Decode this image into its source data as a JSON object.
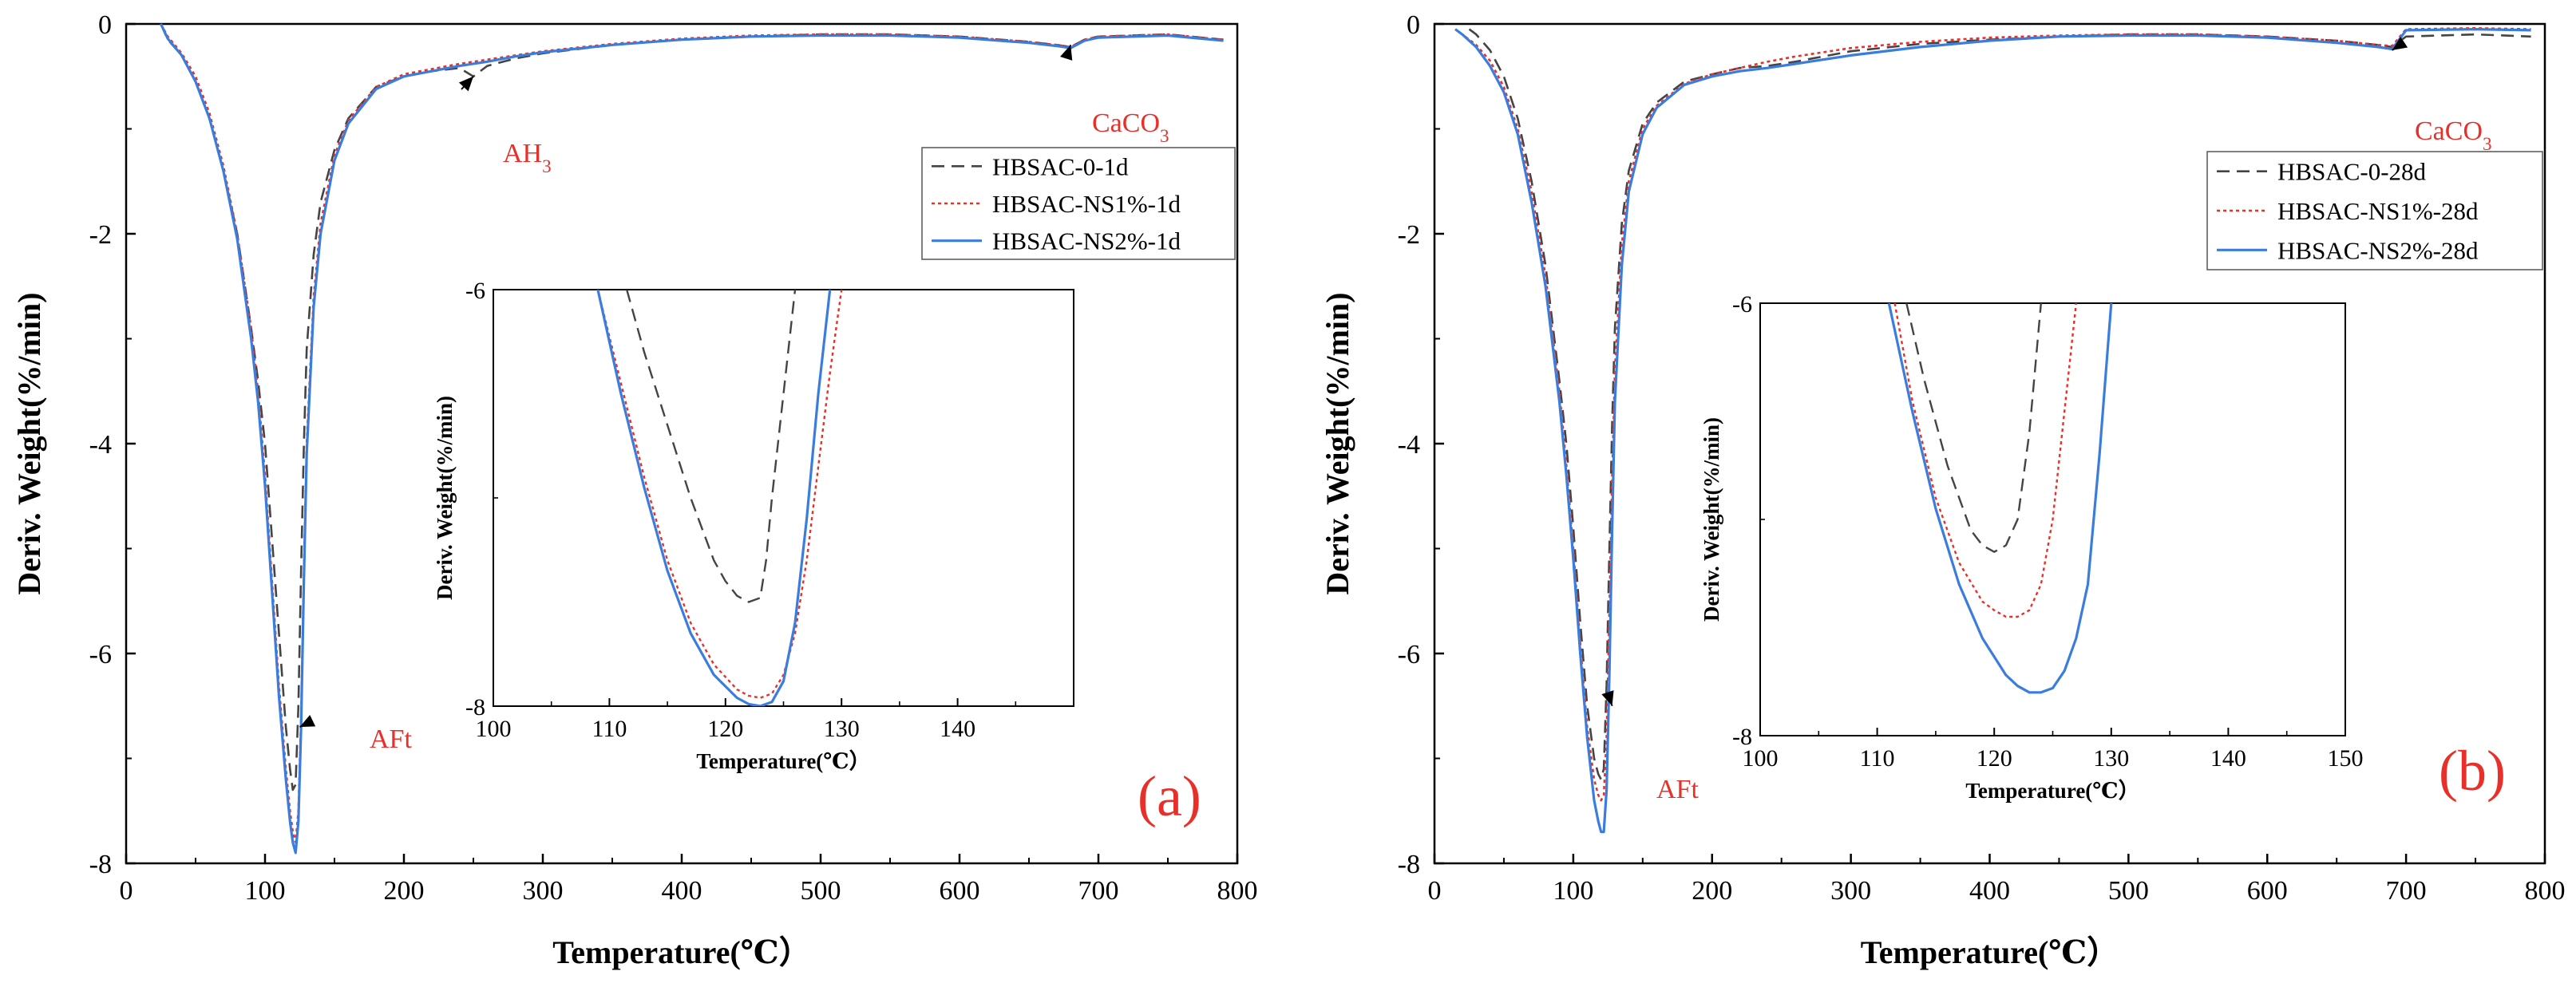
{
  "chart_data": [
    {
      "type": "line",
      "panel_label": "(a)",
      "xlabel": "Temperature(℃）",
      "ylabel": "Deriv. Weight(%/min)",
      "xlim": [
        0,
        800
      ],
      "ylim": [
        -8,
        0
      ],
      "xticks": [
        0,
        100,
        200,
        300,
        400,
        500,
        600,
        700,
        800
      ],
      "yticks": [
        0,
        -2,
        -4,
        -6,
        -8
      ],
      "legend_position": "right-upper",
      "series": [
        {
          "name": "HBSAC-0-1d",
          "color": "#444444",
          "dash": "dashed",
          "x": [
            25,
            30,
            40,
            50,
            60,
            70,
            80,
            90,
            95,
            100,
            105,
            110,
            115,
            118,
            120,
            122,
            124,
            126,
            128,
            130,
            135,
            140,
            150,
            160,
            180,
            200,
            220,
            240,
            250,
            260,
            280,
            300,
            350,
            400,
            450,
            500,
            550,
            600,
            650,
            670,
            680,
            690,
            700,
            750,
            790
          ],
          "y": [
            0,
            -0.15,
            -0.3,
            -0.55,
            -0.9,
            -1.4,
            -2.0,
            -2.9,
            -3.4,
            -4.0,
            -4.9,
            -5.8,
            -6.7,
            -7.1,
            -7.3,
            -7.25,
            -6.5,
            -5.2,
            -4.0,
            -3.1,
            -2.2,
            -1.7,
            -1.2,
            -0.9,
            -0.6,
            -0.5,
            -0.45,
            -0.42,
            -0.5,
            -0.4,
            -0.33,
            -0.28,
            -0.2,
            -0.15,
            -0.12,
            -0.1,
            -0.1,
            -0.12,
            -0.17,
            -0.2,
            -0.22,
            -0.15,
            -0.12,
            -0.1,
            -0.15
          ]
        },
        {
          "name": "HBSAC-NS1%-1d",
          "color": "#e8302a",
          "dash": "dotted",
          "x": [
            25,
            30,
            40,
            50,
            60,
            70,
            80,
            90,
            95,
            100,
            105,
            110,
            115,
            118,
            120,
            122,
            124,
            126,
            128,
            130,
            135,
            140,
            150,
            160,
            180,
            200,
            220,
            240,
            260,
            280,
            300,
            350,
            400,
            450,
            500,
            550,
            600,
            650,
            670,
            680,
            690,
            700,
            750,
            790
          ],
          "y": [
            0,
            -0.12,
            -0.28,
            -0.5,
            -0.85,
            -1.35,
            -2.0,
            -2.9,
            -3.5,
            -4.3,
            -5.3,
            -6.3,
            -7.1,
            -7.5,
            -7.7,
            -7.8,
            -7.5,
            -6.6,
            -5.2,
            -4.0,
            -2.6,
            -1.9,
            -1.25,
            -0.92,
            -0.6,
            -0.48,
            -0.43,
            -0.38,
            -0.34,
            -0.3,
            -0.26,
            -0.19,
            -0.14,
            -0.11,
            -0.1,
            -0.1,
            -0.12,
            -0.17,
            -0.2,
            -0.22,
            -0.15,
            -0.12,
            -0.1,
            -0.15
          ]
        },
        {
          "name": "HBSAC-NS2%-1d",
          "color": "#3b7ddd",
          "dash": "solid",
          "x": [
            25,
            30,
            40,
            50,
            60,
            70,
            80,
            90,
            95,
            100,
            105,
            110,
            115,
            118,
            120,
            122,
            124,
            126,
            128,
            130,
            135,
            140,
            150,
            160,
            180,
            200,
            220,
            240,
            260,
            280,
            300,
            350,
            400,
            450,
            500,
            550,
            600,
            650,
            670,
            680,
            690,
            700,
            750,
            790
          ],
          "y": [
            0,
            -0.14,
            -0.3,
            -0.55,
            -0.9,
            -1.4,
            -2.05,
            -3.0,
            -3.6,
            -4.4,
            -5.4,
            -6.4,
            -7.2,
            -7.6,
            -7.8,
            -7.9,
            -7.6,
            -6.7,
            -5.3,
            -4.1,
            -2.7,
            -2.0,
            -1.3,
            -0.95,
            -0.62,
            -0.5,
            -0.45,
            -0.4,
            -0.36,
            -0.31,
            -0.27,
            -0.2,
            -0.15,
            -0.12,
            -0.11,
            -0.11,
            -0.13,
            -0.18,
            -0.21,
            -0.23,
            -0.16,
            -0.13,
            -0.11,
            -0.16
          ]
        }
      ],
      "annotations": [
        {
          "text": "AH",
          "sub": "3",
          "x": 250,
          "y": -0.5
        },
        {
          "text": "CaCO",
          "sub": "3",
          "x": 680,
          "y": -0.2
        },
        {
          "text": "AFt",
          "sub": "",
          "x": 125,
          "y": -6.7
        }
      ],
      "inset": {
        "xlabel": "Temperature(℃）",
        "ylabel": "Deriv. Weight(%/min)",
        "xlim": [
          100,
          150
        ],
        "ylim": [
          -8,
          -6
        ],
        "xticks": [
          100,
          110,
          120,
          130,
          140
        ],
        "yticks": [
          -6,
          -8
        ],
        "series": [
          {
            "name": "HBSAC-0-1d",
            "x": [
              111.5,
              113,
              115,
              117,
              119,
              120,
              121,
              122,
              123,
              123.5,
              124,
              125,
              126
            ],
            "y": [
              -6.0,
              -6.3,
              -6.65,
              -7.0,
              -7.3,
              -7.4,
              -7.47,
              -7.5,
              -7.48,
              -7.3,
              -7.0,
              -6.5,
              -6.0
            ]
          },
          {
            "name": "HBSAC-NS1%-1d",
            "x": [
              109,
              111,
              113,
              115,
              117,
              119,
              121,
              122,
              123,
              124,
              125,
              126,
              127,
              128,
              129,
              130
            ],
            "y": [
              -6.0,
              -6.45,
              -6.9,
              -7.3,
              -7.6,
              -7.8,
              -7.92,
              -7.95,
              -7.96,
              -7.94,
              -7.85,
              -7.65,
              -7.3,
              -6.85,
              -6.4,
              -6.0
            ]
          },
          {
            "name": "HBSAC-NS2%-1d",
            "x": [
              109,
              111,
              113,
              115,
              117,
              119,
              121,
              122,
              123,
              124,
              125,
              126,
              127,
              128,
              129
            ],
            "y": [
              -6.0,
              -6.5,
              -6.95,
              -7.35,
              -7.65,
              -7.85,
              -7.96,
              -7.99,
              -8.0,
              -7.98,
              -7.88,
              -7.6,
              -7.1,
              -6.5,
              -6.0
            ]
          }
        ]
      }
    },
    {
      "type": "line",
      "panel_label": "(b)",
      "xlabel": "Temperature(℃）",
      "ylabel": "Deriv. Weight(%/min)",
      "xlim": [
        0,
        800
      ],
      "ylim": [
        -8,
        0
      ],
      "xticks": [
        0,
        100,
        200,
        300,
        400,
        500,
        600,
        700,
        800
      ],
      "yticks": [
        0,
        -2,
        -4,
        -6,
        -8
      ],
      "legend_position": "right-upper",
      "series": [
        {
          "name": "HBSAC-0-28d",
          "color": "#444444",
          "dash": "dashed",
          "x": [
            25,
            30,
            40,
            50,
            60,
            70,
            80,
            90,
            95,
            100,
            105,
            110,
            115,
            118,
            120,
            122,
            124,
            126,
            128,
            130,
            135,
            140,
            150,
            160,
            180,
            200,
            220,
            240,
            260,
            280,
            300,
            350,
            400,
            450,
            500,
            550,
            600,
            650,
            680,
            690,
            700,
            750,
            790
          ],
          "y": [
            -0.05,
            -0.1,
            -0.25,
            -0.5,
            -0.9,
            -1.5,
            -2.3,
            -3.4,
            -4.0,
            -4.8,
            -5.7,
            -6.5,
            -7.0,
            -7.15,
            -7.2,
            -7.1,
            -6.3,
            -5.0,
            -3.8,
            -2.9,
            -1.9,
            -1.4,
            -0.95,
            -0.75,
            -0.55,
            -0.48,
            -0.42,
            -0.4,
            -0.36,
            -0.31,
            -0.26,
            -0.19,
            -0.15,
            -0.12,
            -0.1,
            -0.1,
            -0.12,
            -0.16,
            -0.2,
            -0.22,
            -0.12,
            -0.1,
            -0.12
          ]
        },
        {
          "name": "HBSAC-NS1%-28d",
          "color": "#e8302a",
          "dash": "dotted",
          "x": [
            15,
            20,
            30,
            40,
            50,
            60,
            70,
            80,
            90,
            95,
            100,
            105,
            110,
            115,
            118,
            120,
            122,
            124,
            126,
            128,
            130,
            135,
            140,
            150,
            160,
            180,
            200,
            220,
            240,
            260,
            280,
            300,
            350,
            400,
            450,
            500,
            550,
            600,
            650,
            680,
            690,
            700,
            750,
            790
          ],
          "y": [
            -0.05,
            -0.1,
            -0.2,
            -0.35,
            -0.6,
            -1.0,
            -1.6,
            -2.4,
            -3.5,
            -4.2,
            -5.0,
            -5.9,
            -6.7,
            -7.2,
            -7.35,
            -7.4,
            -7.35,
            -6.8,
            -5.6,
            -4.3,
            -3.3,
            -2.1,
            -1.5,
            -1.0,
            -0.78,
            -0.57,
            -0.48,
            -0.42,
            -0.36,
            -0.31,
            -0.27,
            -0.23,
            -0.17,
            -0.13,
            -0.11,
            -0.1,
            -0.1,
            -0.12,
            -0.16,
            -0.2,
            -0.21,
            -0.05,
            -0.04,
            -0.05
          ]
        },
        {
          "name": "HBSAC-NS2%-28d",
          "color": "#3b7ddd",
          "dash": "solid",
          "x": [
            15,
            20,
            30,
            40,
            50,
            60,
            70,
            80,
            90,
            95,
            100,
            105,
            110,
            115,
            118,
            120,
            122,
            124,
            126,
            128,
            130,
            135,
            140,
            150,
            160,
            180,
            200,
            220,
            240,
            260,
            280,
            300,
            350,
            400,
            450,
            500,
            550,
            600,
            650,
            680,
            690,
            700,
            750,
            790
          ],
          "y": [
            -0.05,
            -0.1,
            -0.22,
            -0.4,
            -0.65,
            -1.05,
            -1.7,
            -2.5,
            -3.6,
            -4.3,
            -5.1,
            -6.0,
            -6.8,
            -7.4,
            -7.6,
            -7.7,
            -7.7,
            -7.3,
            -6.2,
            -4.8,
            -3.6,
            -2.3,
            -1.6,
            -1.05,
            -0.8,
            -0.58,
            -0.5,
            -0.45,
            -0.42,
            -0.38,
            -0.34,
            -0.3,
            -0.22,
            -0.16,
            -0.12,
            -0.11,
            -0.11,
            -0.13,
            -0.18,
            -0.22,
            -0.24,
            -0.06,
            -0.05,
            -0.06
          ]
        }
      ],
      "annotations": [
        {
          "text": "CaCO",
          "sub": "3",
          "x": 690,
          "y": -0.25
        },
        {
          "text": "AFt",
          "sub": "",
          "x": 128,
          "y": -6.5
        }
      ],
      "inset": {
        "xlabel": "Temperature(℃）",
        "ylabel": "Deriv. Weight(%/min)",
        "xlim": [
          100,
          150
        ],
        "ylim": [
          -8,
          -6
        ],
        "xticks": [
          100,
          110,
          120,
          130,
          140,
          150
        ],
        "yticks": [
          -6,
          -8
        ],
        "series": [
          {
            "name": "HBSAC-0-28d",
            "x": [
              112.5,
              114,
              116,
              118,
              119,
              120,
              121,
              122,
              123,
              123.5,
              124
            ],
            "y": [
              -6.0,
              -6.35,
              -6.75,
              -7.05,
              -7.12,
              -7.15,
              -7.12,
              -7.0,
              -6.6,
              -6.3,
              -6.0
            ]
          },
          {
            "name": "HBSAC-NS1%-28d",
            "x": [
              111.5,
              113,
              115,
              117,
              119,
              120,
              121,
              122,
              123,
              124,
              125,
              126,
              127
            ],
            "y": [
              -6.0,
              -6.45,
              -6.9,
              -7.2,
              -7.38,
              -7.42,
              -7.45,
              -7.45,
              -7.42,
              -7.3,
              -7.0,
              -6.5,
              -6.0
            ]
          },
          {
            "name": "HBSAC-NS2%-28d",
            "x": [
              111,
              113,
              115,
              117,
              119,
              121,
              122,
              123,
              124,
              125,
              126,
              127,
              128,
              129,
              130
            ],
            "y": [
              -6.0,
              -6.5,
              -6.95,
              -7.3,
              -7.55,
              -7.72,
              -7.77,
              -7.8,
              -7.8,
              -7.78,
              -7.7,
              -7.55,
              -7.3,
              -6.7,
              -6.0
            ]
          }
        ]
      }
    }
  ]
}
